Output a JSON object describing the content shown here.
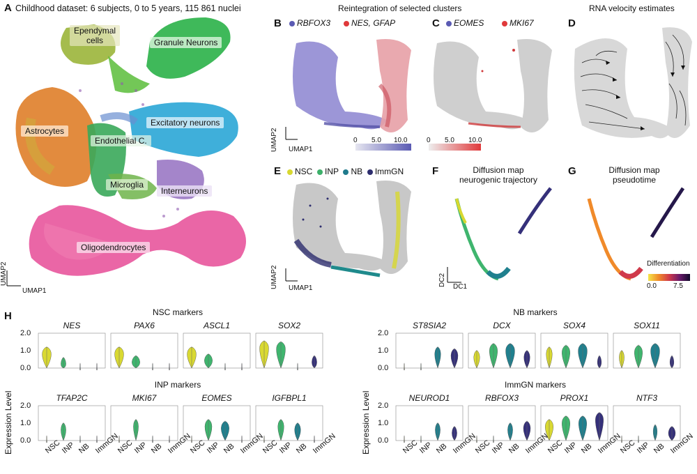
{
  "panelA": {
    "letter": "A",
    "title": "Childhood dataset: 6 subjects, 0 to 5 years, 115 861 nuclei",
    "clusters": [
      {
        "label": "Ependymal\ncells",
        "name": "ependymal",
        "color": "#9bb53a"
      },
      {
        "label": "Granule Neurons",
        "name": "granule",
        "color": "#2fb34c"
      },
      {
        "label": "Astrocytes",
        "name": "astrocytes",
        "color": "#e0812e"
      },
      {
        "label": "Endothelial C.",
        "name": "endothelial",
        "color": "#3aa85a"
      },
      {
        "label": "Excitatory neurons",
        "name": "excitatory",
        "color": "#2aa6d6"
      },
      {
        "label": "Microglia",
        "name": "microglia",
        "color": "#6fb44a"
      },
      {
        "label": "Interneurons",
        "name": "interneurons",
        "color": "#9a78c4"
      },
      {
        "label": "Oligodendrocytes",
        "name": "oligodendrocytes",
        "color": "#e8559c"
      }
    ],
    "axis_y": "UMAP2",
    "axis_x": "UMAP1"
  },
  "panelB": {
    "letter": "B",
    "header": "Reintegration of selected clusters",
    "legend": [
      {
        "label": "RBFOX3",
        "color": "#5a5ab3"
      },
      {
        "label": "NES, GFAP",
        "color": "#e0393b"
      }
    ],
    "axis_y": "UMAP2",
    "axis_x": "UMAP1",
    "scale_ticks": [
      "0",
      "5.0",
      "10.0"
    ]
  },
  "panelC": {
    "letter": "C",
    "legend": [
      {
        "label": "EOMES",
        "color": "#5a5ab3"
      },
      {
        "label": "MKI67",
        "color": "#e0393b"
      }
    ],
    "scale_ticks": [
      "0",
      "5.0",
      "10.0"
    ]
  },
  "panelD": {
    "letter": "D",
    "title": "RNA velocity estimates"
  },
  "panelE": {
    "letter": "E",
    "legend": [
      {
        "label": "NSC",
        "color": "#d8d830"
      },
      {
        "label": "INP",
        "color": "#3cb06a"
      },
      {
        "label": "NB",
        "color": "#1f7a8c"
      },
      {
        "label": "ImmGN",
        "color": "#2d2d6e"
      }
    ],
    "axis_y": "UMAP2",
    "axis_x": "UMAP1"
  },
  "panelF": {
    "letter": "F",
    "title": "Diffusion map\nneurogenic trajectory",
    "axis_y": "DC2",
    "axis_x": "DC1"
  },
  "panelG": {
    "letter": "G",
    "title": "Diffusion map\npseudotime",
    "scale_title": "Differentiation",
    "scale_ticks": [
      "0.0",
      "7.5"
    ]
  },
  "panelH": {
    "letter": "H",
    "ylabel": "Expression Level",
    "yticks": [
      "0.0",
      "0.5",
      "1.0",
      "1.5",
      "2.0"
    ],
    "categories": [
      "NSC",
      "INP",
      "NB",
      "ImmGN"
    ],
    "category_colors": [
      "#d9d932",
      "#3fb56e",
      "#20808e",
      "#35307a"
    ],
    "groups": [
      {
        "title": "NSC markers",
        "genes": [
          "NES",
          "PAX6",
          "ASCL1",
          "SOX2"
        ]
      },
      {
        "title": "INP markers",
        "genes": [
          "TFAP2C",
          "MKI67",
          "EOMES",
          "IGFBPL1"
        ]
      },
      {
        "title": "NB markers",
        "genes": [
          "ST8SIA2",
          "DCX",
          "SOX4",
          "SOX11"
        ]
      },
      {
        "title": "ImmGN markers",
        "genes": [
          "NEUROD1",
          "RBFOX3",
          "PROX1",
          "NTF3"
        ]
      }
    ]
  }
}
